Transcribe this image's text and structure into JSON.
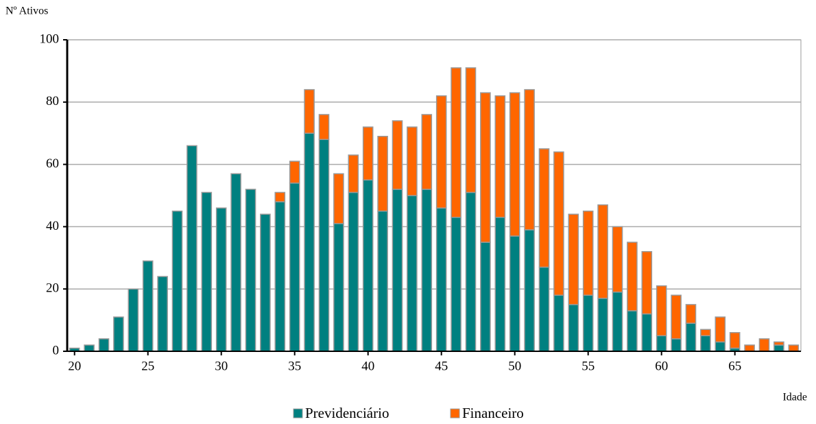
{
  "chart_data": {
    "type": "stacked-bar",
    "y_label": "Nº Ativos",
    "x_label": "Idade",
    "x": [
      20,
      21,
      22,
      23,
      24,
      25,
      26,
      27,
      28,
      29,
      30,
      31,
      32,
      33,
      34,
      35,
      36,
      37,
      38,
      39,
      40,
      41,
      42,
      43,
      44,
      45,
      46,
      47,
      48,
      49,
      50,
      51,
      52,
      53,
      54,
      55,
      56,
      57,
      58,
      59,
      60,
      61,
      62,
      63,
      64,
      65,
      66,
      67,
      68,
      69
    ],
    "series": [
      {
        "name": "Previdenciário",
        "color": "#008080",
        "values": [
          1,
          2,
          4,
          11,
          20,
          29,
          24,
          45,
          66,
          51,
          46,
          57,
          52,
          44,
          48,
          54,
          70,
          68,
          41,
          51,
          55,
          45,
          52,
          50,
          52,
          46,
          43,
          51,
          35,
          43,
          37,
          39,
          27,
          18,
          15,
          18,
          17,
          19,
          13,
          12,
          5,
          4,
          9,
          5,
          3,
          1,
          0,
          0,
          2,
          0
        ]
      },
      {
        "name": "Financeiro",
        "color": "#ff6600",
        "values": [
          0,
          0,
          0,
          0,
          0,
          0,
          0,
          0,
          0,
          0,
          0,
          0,
          0,
          0,
          3,
          7,
          14,
          8,
          16,
          12,
          17,
          24,
          22,
          22,
          24,
          36,
          48,
          40,
          48,
          39,
          46,
          45,
          38,
          46,
          29,
          27,
          30,
          21,
          22,
          20,
          16,
          14,
          6,
          2,
          8,
          5,
          2,
          4,
          1,
          2
        ]
      }
    ],
    "xlim": [
      19.5,
      69.5
    ],
    "xticks": [
      20,
      25,
      30,
      35,
      40,
      45,
      50,
      55,
      60,
      65
    ],
    "ylim": [
      0,
      100
    ],
    "yticks": [
      0,
      20,
      40,
      60,
      80,
      100
    ],
    "grid": true
  }
}
